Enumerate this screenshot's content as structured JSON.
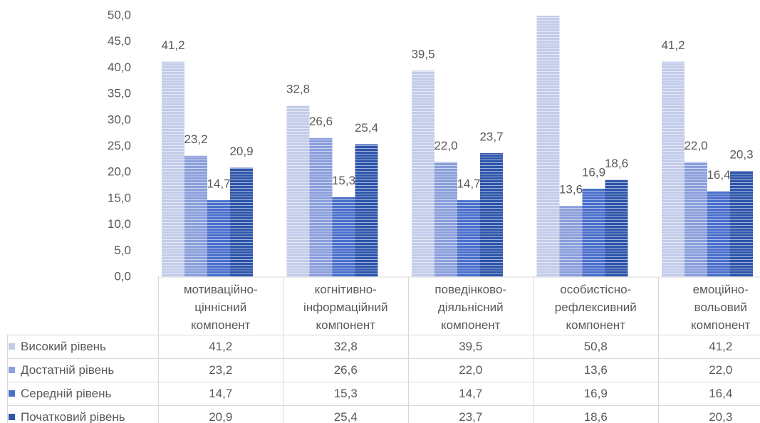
{
  "chart_data": {
    "type": "bar",
    "categories": [
      "мотиваційно-\nціннісний\nкомпонент",
      "когнітивно-\nінформаційний\nкомпонент",
      "поведінково-\nдіяльнісний\nкомпонент",
      "особистісно-\nрефлексивний\nкомпонент",
      "емоційно-\nвольовий\nкомпонент"
    ],
    "series": [
      {
        "name": "Високий рівень",
        "color": "#c3cdea",
        "values": [
          41.2,
          32.8,
          39.5,
          50.8,
          41.2
        ],
        "value_labels": [
          "41,2",
          "32,8",
          "39,5",
          "50,8",
          "41,2"
        ]
      },
      {
        "name": "Достатній рівень",
        "color": "#8b9fdb",
        "values": [
          23.2,
          26.6,
          22.0,
          13.6,
          22.0
        ],
        "value_labels": [
          "23,2",
          "26,6",
          "22,0",
          "13,6",
          "22,0"
        ]
      },
      {
        "name": "Середній рівень",
        "color": "#4a6fcc",
        "values": [
          14.7,
          15.3,
          14.7,
          16.9,
          16.4
        ],
        "value_labels": [
          "14,7",
          "15,3",
          "14,7",
          "16,9",
          "16,4"
        ]
      },
      {
        "name": "Початковий рівень",
        "color": "#2e55aa",
        "values": [
          20.9,
          25.4,
          23.7,
          18.6,
          20.3
        ],
        "value_labels": [
          "20,9",
          "25,4",
          "23,7",
          "18,6",
          "20,3"
        ]
      }
    ],
    "ylim": [
      0,
      50
    ],
    "yticks": [
      {
        "value": 0,
        "label": "0,0"
      },
      {
        "value": 5,
        "label": "5,0"
      },
      {
        "value": 10,
        "label": "10,0"
      },
      {
        "value": 15,
        "label": "15,0"
      },
      {
        "value": 20,
        "label": "20,0"
      },
      {
        "value": 25,
        "label": "25,0"
      },
      {
        "value": 30,
        "label": "30,0"
      },
      {
        "value": 35,
        "label": "35,0"
      },
      {
        "value": 40,
        "label": "40,0"
      },
      {
        "value": 45,
        "label": "45,0"
      },
      {
        "value": 50,
        "label": "50,0"
      }
    ],
    "grid": false,
    "data_table": true
  }
}
